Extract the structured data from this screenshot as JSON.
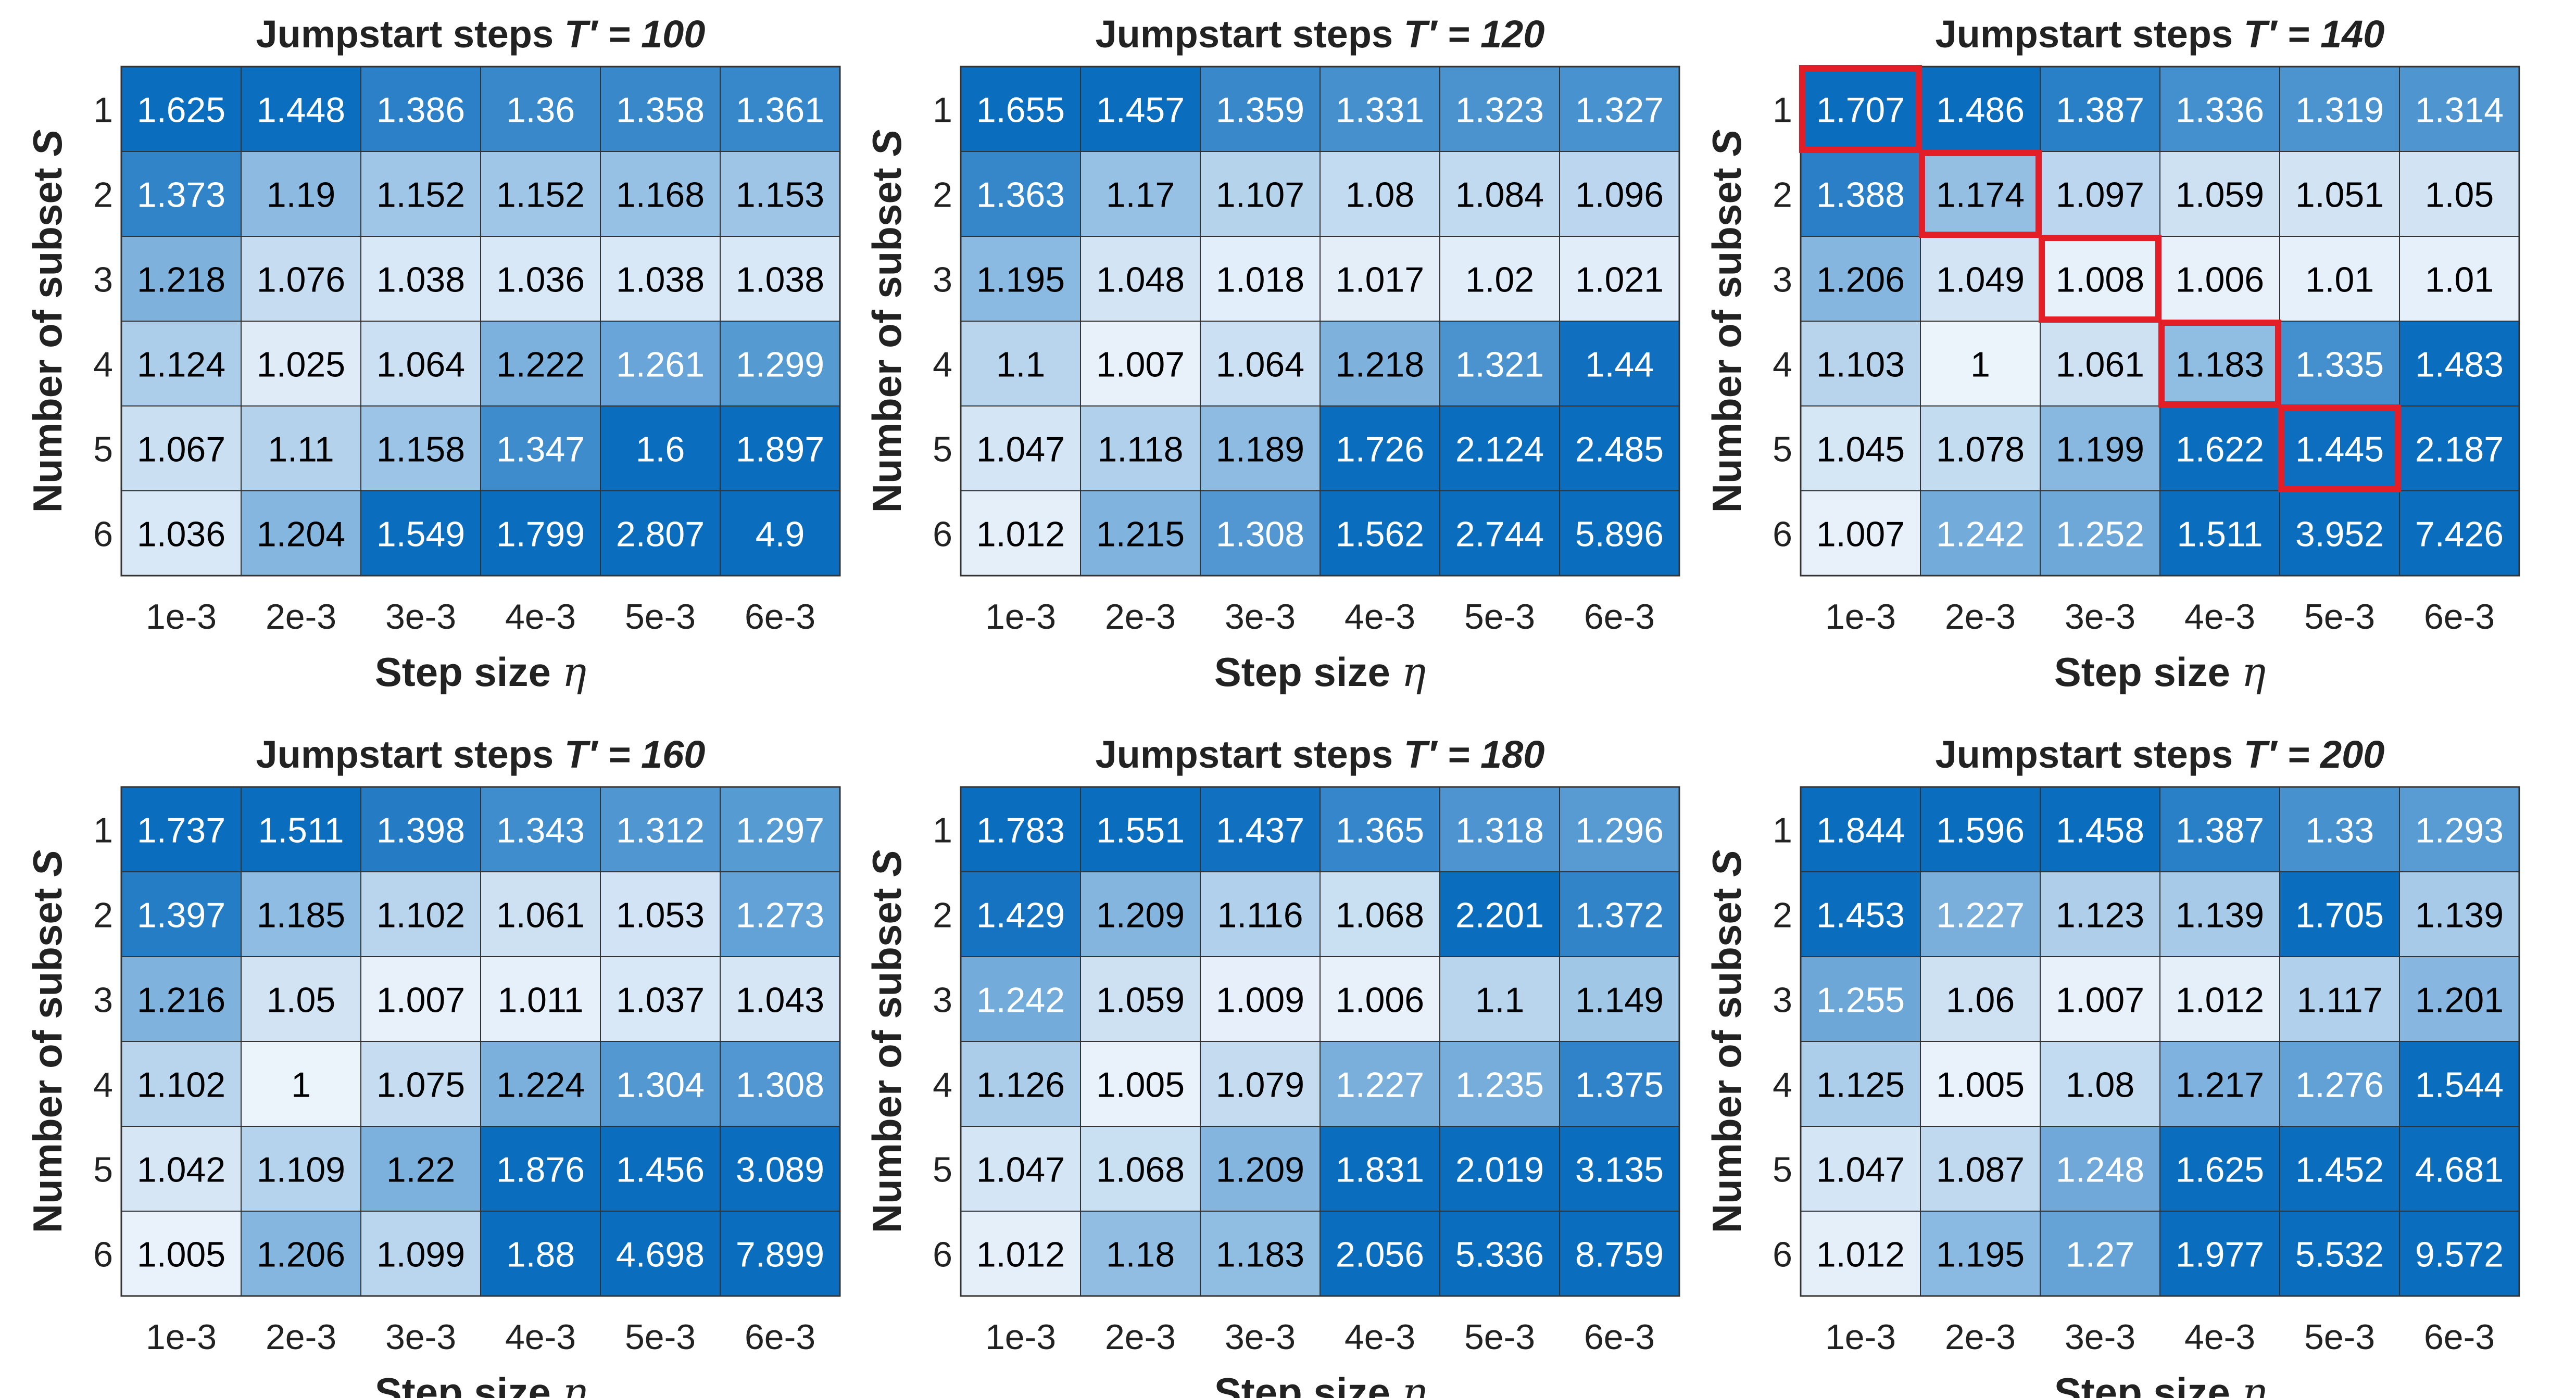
{
  "chart_data": [
    {
      "type": "heatmap",
      "title_prefix": "Jumpstart steps",
      "title_var": "T′",
      "title_value": "100",
      "xlabel_text": "Step size",
      "xlabel_symbol": "η",
      "ylabel_text": "Number of subset",
      "ylabel_symbol": "S",
      "x_ticks": [
        "1e-3",
        "2e-3",
        "3e-3",
        "4e-3",
        "5e-3",
        "6e-3"
      ],
      "y_ticks": [
        "1",
        "2",
        "3",
        "4",
        "5",
        "6"
      ],
      "values": [
        [
          "1.625",
          "1.448",
          "1.386",
          "1.36",
          "1.358",
          "1.361"
        ],
        [
          "1.373",
          "1.19",
          "1.152",
          "1.152",
          "1.168",
          "1.153"
        ],
        [
          "1.218",
          "1.076",
          "1.038",
          "1.036",
          "1.038",
          "1.038"
        ],
        [
          "1.124",
          "1.025",
          "1.064",
          "1.222",
          "1.261",
          "1.299"
        ],
        [
          "1.067",
          "1.11",
          "1.158",
          "1.347",
          "1.6",
          "1.897"
        ],
        [
          "1.036",
          "1.204",
          "1.549",
          "1.799",
          "2.807",
          "4.9"
        ]
      ],
      "highlight": []
    },
    {
      "type": "heatmap",
      "title_prefix": "Jumpstart steps",
      "title_var": "T′",
      "title_value": "120",
      "xlabel_text": "Step size",
      "xlabel_symbol": "η",
      "ylabel_text": "Number of subset",
      "ylabel_symbol": "S",
      "x_ticks": [
        "1e-3",
        "2e-3",
        "3e-3",
        "4e-3",
        "5e-3",
        "6e-3"
      ],
      "y_ticks": [
        "1",
        "2",
        "3",
        "4",
        "5",
        "6"
      ],
      "values": [
        [
          "1.655",
          "1.457",
          "1.359",
          "1.331",
          "1.323",
          "1.327"
        ],
        [
          "1.363",
          "1.17",
          "1.107",
          "1.08",
          "1.084",
          "1.096"
        ],
        [
          "1.195",
          "1.048",
          "1.018",
          "1.017",
          "1.02",
          "1.021"
        ],
        [
          "1.1",
          "1.007",
          "1.064",
          "1.218",
          "1.321",
          "1.44"
        ],
        [
          "1.047",
          "1.118",
          "1.189",
          "1.726",
          "2.124",
          "2.485"
        ],
        [
          "1.012",
          "1.215",
          "1.308",
          "1.562",
          "2.744",
          "5.896"
        ]
      ],
      "highlight": []
    },
    {
      "type": "heatmap",
      "title_prefix": "Jumpstart steps",
      "title_var": "T′",
      "title_value": "140",
      "xlabel_text": "Step size",
      "xlabel_symbol": "η",
      "ylabel_text": "Number of subset",
      "ylabel_symbol": "S",
      "x_ticks": [
        "1e-3",
        "2e-3",
        "3e-3",
        "4e-3",
        "5e-3",
        "6e-3"
      ],
      "y_ticks": [
        "1",
        "2",
        "3",
        "4",
        "5",
        "6"
      ],
      "values": [
        [
          "1.707",
          "1.486",
          "1.387",
          "1.336",
          "1.319",
          "1.314"
        ],
        [
          "1.388",
          "1.174",
          "1.097",
          "1.059",
          "1.051",
          "1.05"
        ],
        [
          "1.206",
          "1.049",
          "1.008",
          "1.006",
          "1.01",
          "1.01"
        ],
        [
          "1.103",
          "1",
          "1.061",
          "1.183",
          "1.335",
          "1.483"
        ],
        [
          "1.045",
          "1.078",
          "1.199",
          "1.622",
          "1.445",
          "2.187"
        ],
        [
          "1.007",
          "1.242",
          "1.252",
          "1.511",
          "3.952",
          "7.426"
        ]
      ],
      "highlight": [
        [
          0,
          0
        ],
        [
          1,
          1
        ],
        [
          2,
          2
        ],
        [
          3,
          3
        ],
        [
          4,
          4
        ]
      ]
    },
    {
      "type": "heatmap",
      "title_prefix": "Jumpstart steps",
      "title_var": "T′",
      "title_value": "160",
      "xlabel_text": "Step size",
      "xlabel_symbol": "η",
      "ylabel_text": "Number of subset",
      "ylabel_symbol": "S",
      "x_ticks": [
        "1e-3",
        "2e-3",
        "3e-3",
        "4e-3",
        "5e-3",
        "6e-3"
      ],
      "y_ticks": [
        "1",
        "2",
        "3",
        "4",
        "5",
        "6"
      ],
      "values": [
        [
          "1.737",
          "1.511",
          "1.398",
          "1.343",
          "1.312",
          "1.297"
        ],
        [
          "1.397",
          "1.185",
          "1.102",
          "1.061",
          "1.053",
          "1.273"
        ],
        [
          "1.216",
          "1.05",
          "1.007",
          "1.011",
          "1.037",
          "1.043"
        ],
        [
          "1.102",
          "1",
          "1.075",
          "1.224",
          "1.304",
          "1.308"
        ],
        [
          "1.042",
          "1.109",
          "1.22",
          "1.876",
          "1.456",
          "3.089"
        ],
        [
          "1.005",
          "1.206",
          "1.099",
          "1.88",
          "4.698",
          "7.899"
        ]
      ],
      "highlight": []
    },
    {
      "type": "heatmap",
      "title_prefix": "Jumpstart steps",
      "title_var": "T′",
      "title_value": "180",
      "xlabel_text": "Step size",
      "xlabel_symbol": "η",
      "ylabel_text": "Number of subset",
      "ylabel_symbol": "S",
      "x_ticks": [
        "1e-3",
        "2e-3",
        "3e-3",
        "4e-3",
        "5e-3",
        "6e-3"
      ],
      "y_ticks": [
        "1",
        "2",
        "3",
        "4",
        "5",
        "6"
      ],
      "values": [
        [
          "1.783",
          "1.551",
          "1.437",
          "1.365",
          "1.318",
          "1.296"
        ],
        [
          "1.429",
          "1.209",
          "1.116",
          "1.068",
          "2.201",
          "1.372"
        ],
        [
          "1.242",
          "1.059",
          "1.009",
          "1.006",
          "1.1",
          "1.149"
        ],
        [
          "1.126",
          "1.005",
          "1.079",
          "1.227",
          "1.235",
          "1.375"
        ],
        [
          "1.047",
          "1.068",
          "1.209",
          "1.831",
          "2.019",
          "3.135"
        ],
        [
          "1.012",
          "1.18",
          "1.183",
          "2.056",
          "5.336",
          "8.759"
        ]
      ],
      "highlight": []
    },
    {
      "type": "heatmap",
      "title_prefix": "Jumpstart steps",
      "title_var": "T′",
      "title_value": "200",
      "xlabel_text": "Step size",
      "xlabel_symbol": "η",
      "ylabel_text": "Number of subset",
      "ylabel_symbol": "S",
      "x_ticks": [
        "1e-3",
        "2e-3",
        "3e-3",
        "4e-3",
        "5e-3",
        "6e-3"
      ],
      "y_ticks": [
        "1",
        "2",
        "3",
        "4",
        "5",
        "6"
      ],
      "values": [
        [
          "1.844",
          "1.596",
          "1.458",
          "1.387",
          "1.33",
          "1.293"
        ],
        [
          "1.453",
          "1.227",
          "1.123",
          "1.139",
          "1.705",
          "1.139"
        ],
        [
          "1.255",
          "1.06",
          "1.007",
          "1.012",
          "1.117",
          "1.201"
        ],
        [
          "1.125",
          "1.005",
          "1.08",
          "1.217",
          "1.276",
          "1.544"
        ],
        [
          "1.047",
          "1.087",
          "1.248",
          "1.625",
          "1.452",
          "4.681"
        ],
        [
          "1.012",
          "1.195",
          "1.27",
          "1.977",
          "5.532",
          "9.572"
        ]
      ],
      "highlight": []
    }
  ],
  "colormap": {
    "low": "#ebf3fb",
    "high": "#0b6dbe",
    "highlight": "#e41e26",
    "grid": "#333333"
  }
}
